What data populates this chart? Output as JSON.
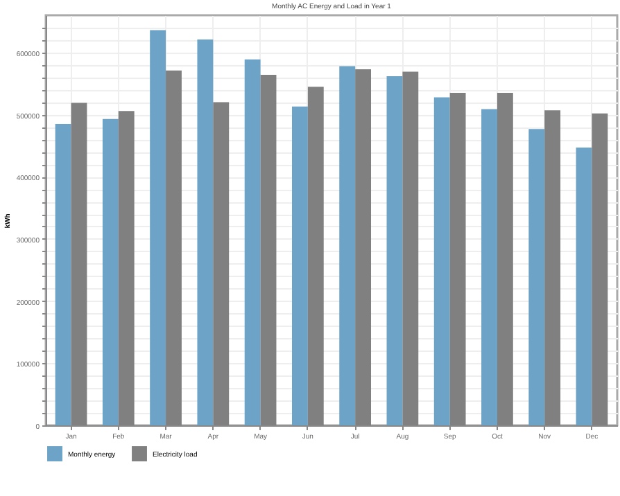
{
  "chart_data": {
    "type": "bar",
    "title": "Monthly AC Energy and Load in Year 1",
    "ylabel": "kWh",
    "categories": [
      "Jan",
      "Feb",
      "Mar",
      "Apr",
      "May",
      "Jun",
      "Jul",
      "Aug",
      "Sep",
      "Oct",
      "Nov",
      "Dec"
    ],
    "series": [
      {
        "name": "Monthly energy",
        "color": "#6ca3c6",
        "values": [
          485000,
          493000,
          636000,
          621000,
          589000,
          513000,
          578000,
          562000,
          528000,
          509000,
          477000,
          447000
        ]
      },
      {
        "name": "Electricity load",
        "color": "#808080",
        "values": [
          519000,
          506000,
          571000,
          520000,
          564000,
          545000,
          573000,
          569000,
          535000,
          535000,
          507000,
          502000
        ]
      }
    ],
    "ylim": [
      0,
      660000
    ],
    "yticks": [
      0,
      {
        "value": 20000,
        "label": null
      },
      {
        "value": 40000,
        "label": null
      },
      {
        "value": 60000,
        "label": null
      },
      {
        "value": 80000,
        "label": null
      },
      100000,
      {
        "value": 120000,
        "label": null
      },
      {
        "value": 140000,
        "label": null
      },
      {
        "value": 160000,
        "label": null
      },
      {
        "value": 180000,
        "label": null
      },
      200000,
      {
        "value": 220000,
        "label": null
      },
      {
        "value": 240000,
        "label": null
      },
      {
        "value": 260000,
        "label": null
      },
      {
        "value": 280000,
        "label": null
      },
      300000,
      {
        "value": 320000,
        "label": null
      },
      {
        "value": 340000,
        "label": null
      },
      {
        "value": 360000,
        "label": null
      },
      {
        "value": 380000,
        "label": null
      },
      400000,
      {
        "value": 420000,
        "label": null
      },
      {
        "value": 440000,
        "label": null
      },
      {
        "value": 460000,
        "label": null
      },
      {
        "value": 480000,
        "label": null
      },
      500000,
      {
        "value": 520000,
        "label": null
      },
      {
        "value": 540000,
        "label": null
      },
      {
        "value": 560000,
        "label": null
      },
      {
        "value": 580000,
        "label": null
      },
      600000,
      {
        "value": 620000,
        "label": null
      },
      {
        "value": 640000,
        "label": null
      }
    ],
    "grid": true,
    "legend": "bottom left"
  }
}
